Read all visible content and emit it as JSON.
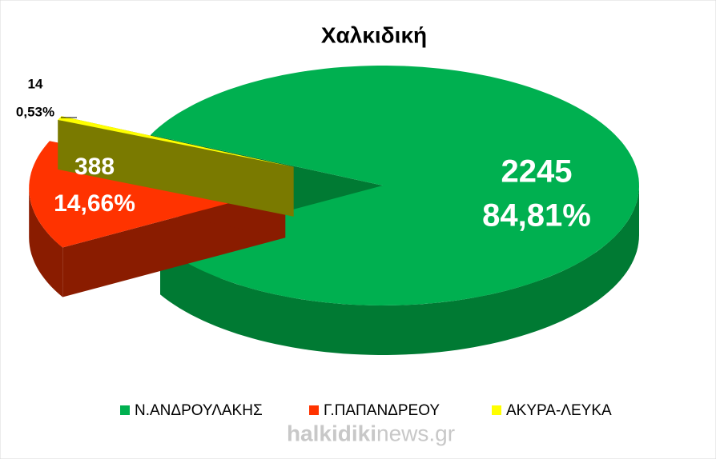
{
  "chart_data": {
    "type": "pie3d",
    "title": "Χαλκιδική",
    "categories": [
      "Ν.ΑΝΔΡΟΥΛΑΚΗΣ",
      "Γ.ΠΑΠΑΝΔΡΕΟΥ",
      "ΑΚΥΡΑ-ΛΕΥΚΑ"
    ],
    "values": [
      2245,
      388,
      14
    ],
    "percentages": [
      84.81,
      14.66,
      0.53
    ],
    "percentage_labels": [
      "84,81%",
      "14,66%",
      "0,53%"
    ],
    "colors": [
      "#00b050",
      "#ff3300",
      "#ffff00"
    ],
    "side_colors": [
      "#007a33",
      "#8a1c00",
      "#7a7a00"
    ],
    "legend": "bottom",
    "watermark": [
      "halkidiki",
      "news.gr"
    ]
  }
}
